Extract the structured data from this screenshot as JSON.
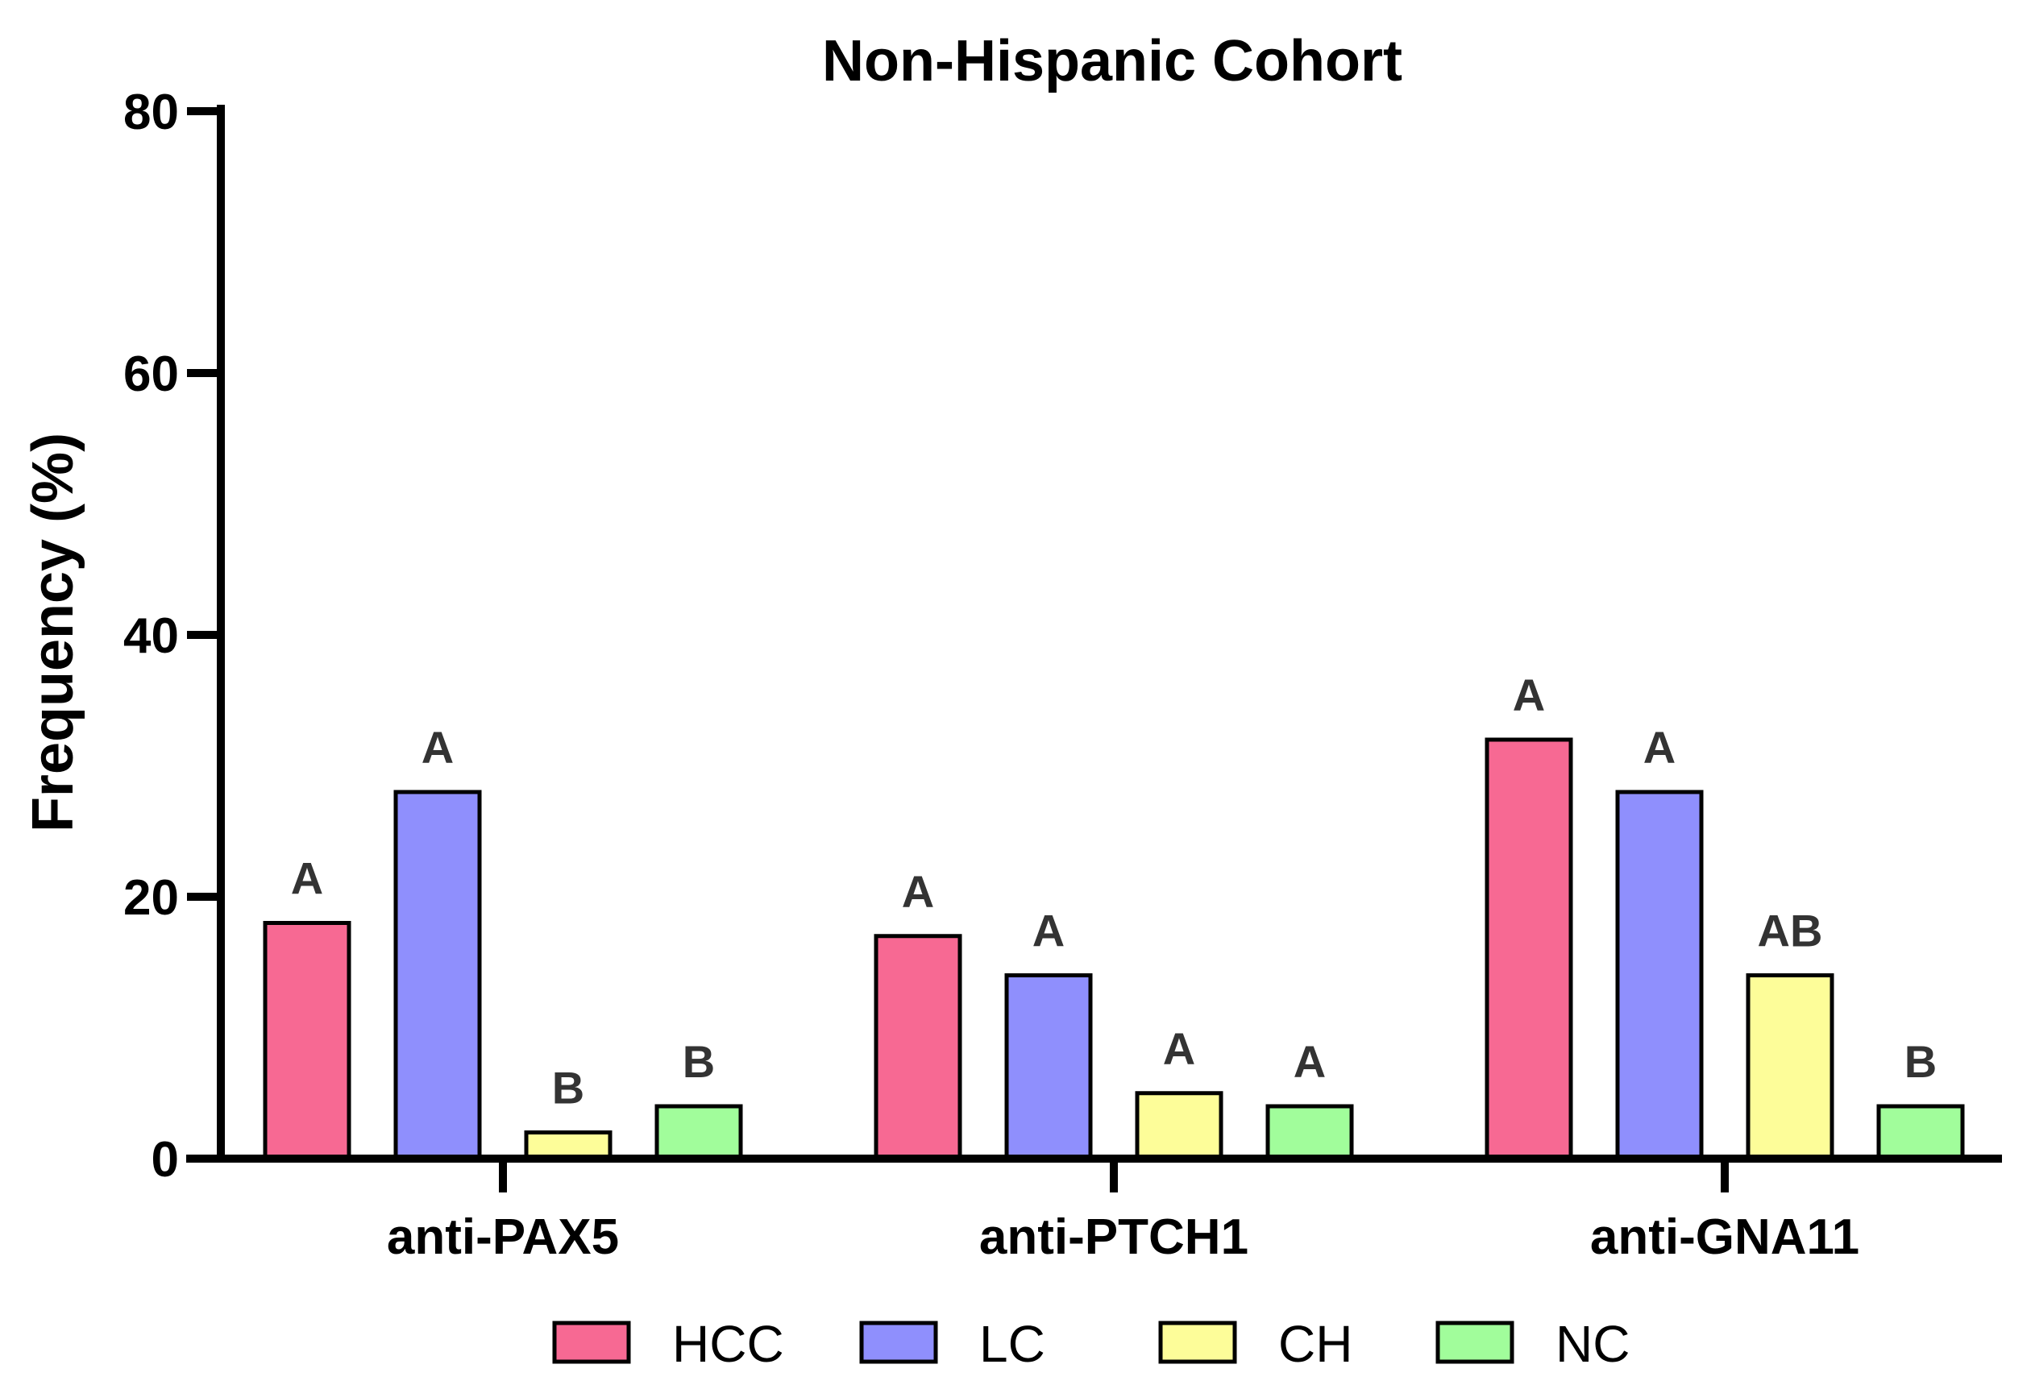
{
  "chart_data": {
    "type": "bar",
    "title": "Non-Hispanic Cohort",
    "xlabel": "",
    "ylabel": "Frequency (%)",
    "ylim": [
      0,
      80
    ],
    "yticks": [
      "0",
      "20",
      "40",
      "60",
      "80"
    ],
    "grid": false,
    "legend_position": "bottom",
    "categories": [
      "anti-PAX5",
      "anti-PTCH1",
      "anti-GNA11"
    ],
    "series": [
      {
        "name": "HCC",
        "color": "#f76993",
        "values": [
          18,
          17,
          32
        ],
        "labels": [
          "A",
          "A",
          "A"
        ]
      },
      {
        "name": "LC",
        "color": "#8f8ffd",
        "values": [
          28,
          14,
          28
        ],
        "labels": [
          "A",
          "A",
          "A"
        ]
      },
      {
        "name": "CH",
        "color": "#fdfd99",
        "values": [
          2,
          5,
          14
        ],
        "labels": [
          "B",
          "A",
          "AB"
        ]
      },
      {
        "name": "NC",
        "color": "#a1fd9b",
        "values": [
          4,
          4,
          4
        ],
        "labels": [
          "B",
          "A",
          "B"
        ]
      }
    ]
  }
}
